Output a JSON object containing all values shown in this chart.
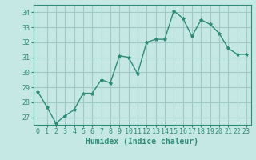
{
  "x": [
    0,
    1,
    2,
    3,
    4,
    5,
    6,
    7,
    8,
    9,
    10,
    11,
    12,
    13,
    14,
    15,
    16,
    17,
    18,
    19,
    20,
    21,
    22,
    23
  ],
  "y": [
    28.7,
    27.7,
    26.6,
    27.1,
    27.5,
    28.6,
    28.6,
    29.5,
    29.3,
    31.1,
    31.0,
    29.9,
    32.0,
    32.2,
    32.2,
    34.1,
    33.6,
    32.4,
    33.5,
    33.2,
    32.6,
    31.6,
    31.2,
    31.2
  ],
  "line_color": "#2e8b78",
  "marker": "*",
  "marker_size": 3,
  "bg_color": "#c5e8e5",
  "grid_color": "#a0c8c5",
  "xlabel": "Humidex (Indice chaleur)",
  "ylim": [
    26.5,
    34.5
  ],
  "xlim": [
    -0.5,
    23.5
  ],
  "yticks": [
    27,
    28,
    29,
    30,
    31,
    32,
    33,
    34
  ],
  "xticks": [
    0,
    1,
    2,
    3,
    4,
    5,
    6,
    7,
    8,
    9,
    10,
    11,
    12,
    13,
    14,
    15,
    16,
    17,
    18,
    19,
    20,
    21,
    22,
    23
  ],
  "axis_fontsize": 7,
  "tick_fontsize": 6,
  "linewidth": 1.0
}
